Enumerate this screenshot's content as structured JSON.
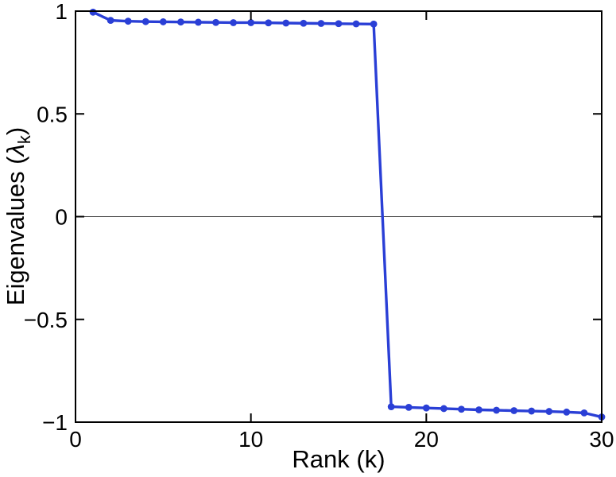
{
  "chart_data": {
    "type": "line",
    "title": "",
    "xlabel": "Rank (k)",
    "ylabel_prefix": "Eigenvalues (",
    "ylabel_lambda": "λ",
    "ylabel_sub": "k",
    "ylabel_suffix": ")",
    "x": [
      1,
      2,
      3,
      4,
      5,
      6,
      7,
      8,
      9,
      10,
      11,
      12,
      13,
      14,
      15,
      16,
      17,
      18,
      19,
      20,
      21,
      22,
      23,
      24,
      25,
      26,
      27,
      28,
      29,
      30
    ],
    "y": [
      0.995,
      0.955,
      0.951,
      0.949,
      0.948,
      0.947,
      0.946,
      0.945,
      0.944,
      0.944,
      0.943,
      0.942,
      0.941,
      0.94,
      0.939,
      0.938,
      0.937,
      -0.925,
      -0.928,
      -0.931,
      -0.934,
      -0.937,
      -0.94,
      -0.942,
      -0.944,
      -0.946,
      -0.948,
      -0.951,
      -0.955,
      -0.975
    ],
    "xlim": [
      0,
      30
    ],
    "ylim": [
      -1,
      1
    ],
    "xticks": [
      0,
      10,
      20,
      30
    ],
    "xtick_labels": [
      "0",
      "10",
      "20",
      "30"
    ],
    "yticks": [
      -1,
      -0.5,
      0,
      0.5,
      1
    ],
    "ytick_labels": [
      "−1",
      "−0.5",
      "0",
      "0.5",
      "1"
    ],
    "line_color": "#2a3fd6",
    "axis_color": "#000000",
    "zero_line": true,
    "zero_line_color": "#404040",
    "marker": "circle",
    "legend": "none",
    "grid": "off"
  }
}
